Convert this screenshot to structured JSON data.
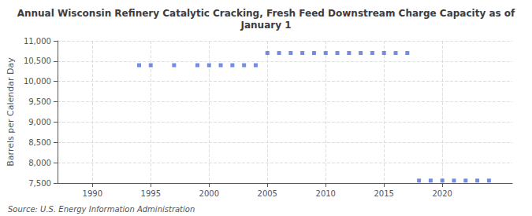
{
  "chart_data": {
    "type": "scatter",
    "title": "Annual Wisconsin Refinery Catalytic Cracking, Fresh Feed Downstream Charge Capacity as of\nJanuary 1",
    "ylabel": "Barrels per Calendar Day",
    "annotations": [
      "Source: U.S. Energy Information Administration"
    ],
    "marker": "square",
    "grid": true,
    "x": [
      1994,
      1995,
      1997,
      1999,
      2000,
      2001,
      2002,
      2003,
      2004,
      2005,
      2006,
      2007,
      2008,
      2009,
      2010,
      2011,
      2012,
      2013,
      2014,
      2015,
      2016,
      2017,
      2018,
      2019,
      2020,
      2021,
      2022,
      2023,
      2024
    ],
    "values": [
      10400,
      10400,
      10400,
      10400,
      10400,
      10400,
      10400,
      10400,
      10400,
      10700,
      10700,
      10700,
      10700,
      10700,
      10700,
      10700,
      10700,
      10700,
      10700,
      10700,
      10700,
      10700,
      7560,
      7560,
      7560,
      7560,
      7560,
      7560,
      7560
    ],
    "xlim": [
      1987,
      2026
    ],
    "xticks": [
      1990,
      1995,
      2000,
      2005,
      2010,
      2015,
      2020
    ],
    "ylim": [
      7500,
      11000
    ],
    "yticks": [
      {
        "value": 7500,
        "label": "7,500"
      },
      {
        "value": 8000,
        "label": "8,000"
      },
      {
        "value": 8500,
        "label": "8,500"
      },
      {
        "value": 9000,
        "label": "9,000"
      },
      {
        "value": 9500,
        "label": "9,500"
      },
      {
        "value": 10000,
        "label": "10,000"
      },
      {
        "value": 10500,
        "label": "10,500"
      },
      {
        "value": 11000,
        "label": "11,000"
      }
    ]
  }
}
